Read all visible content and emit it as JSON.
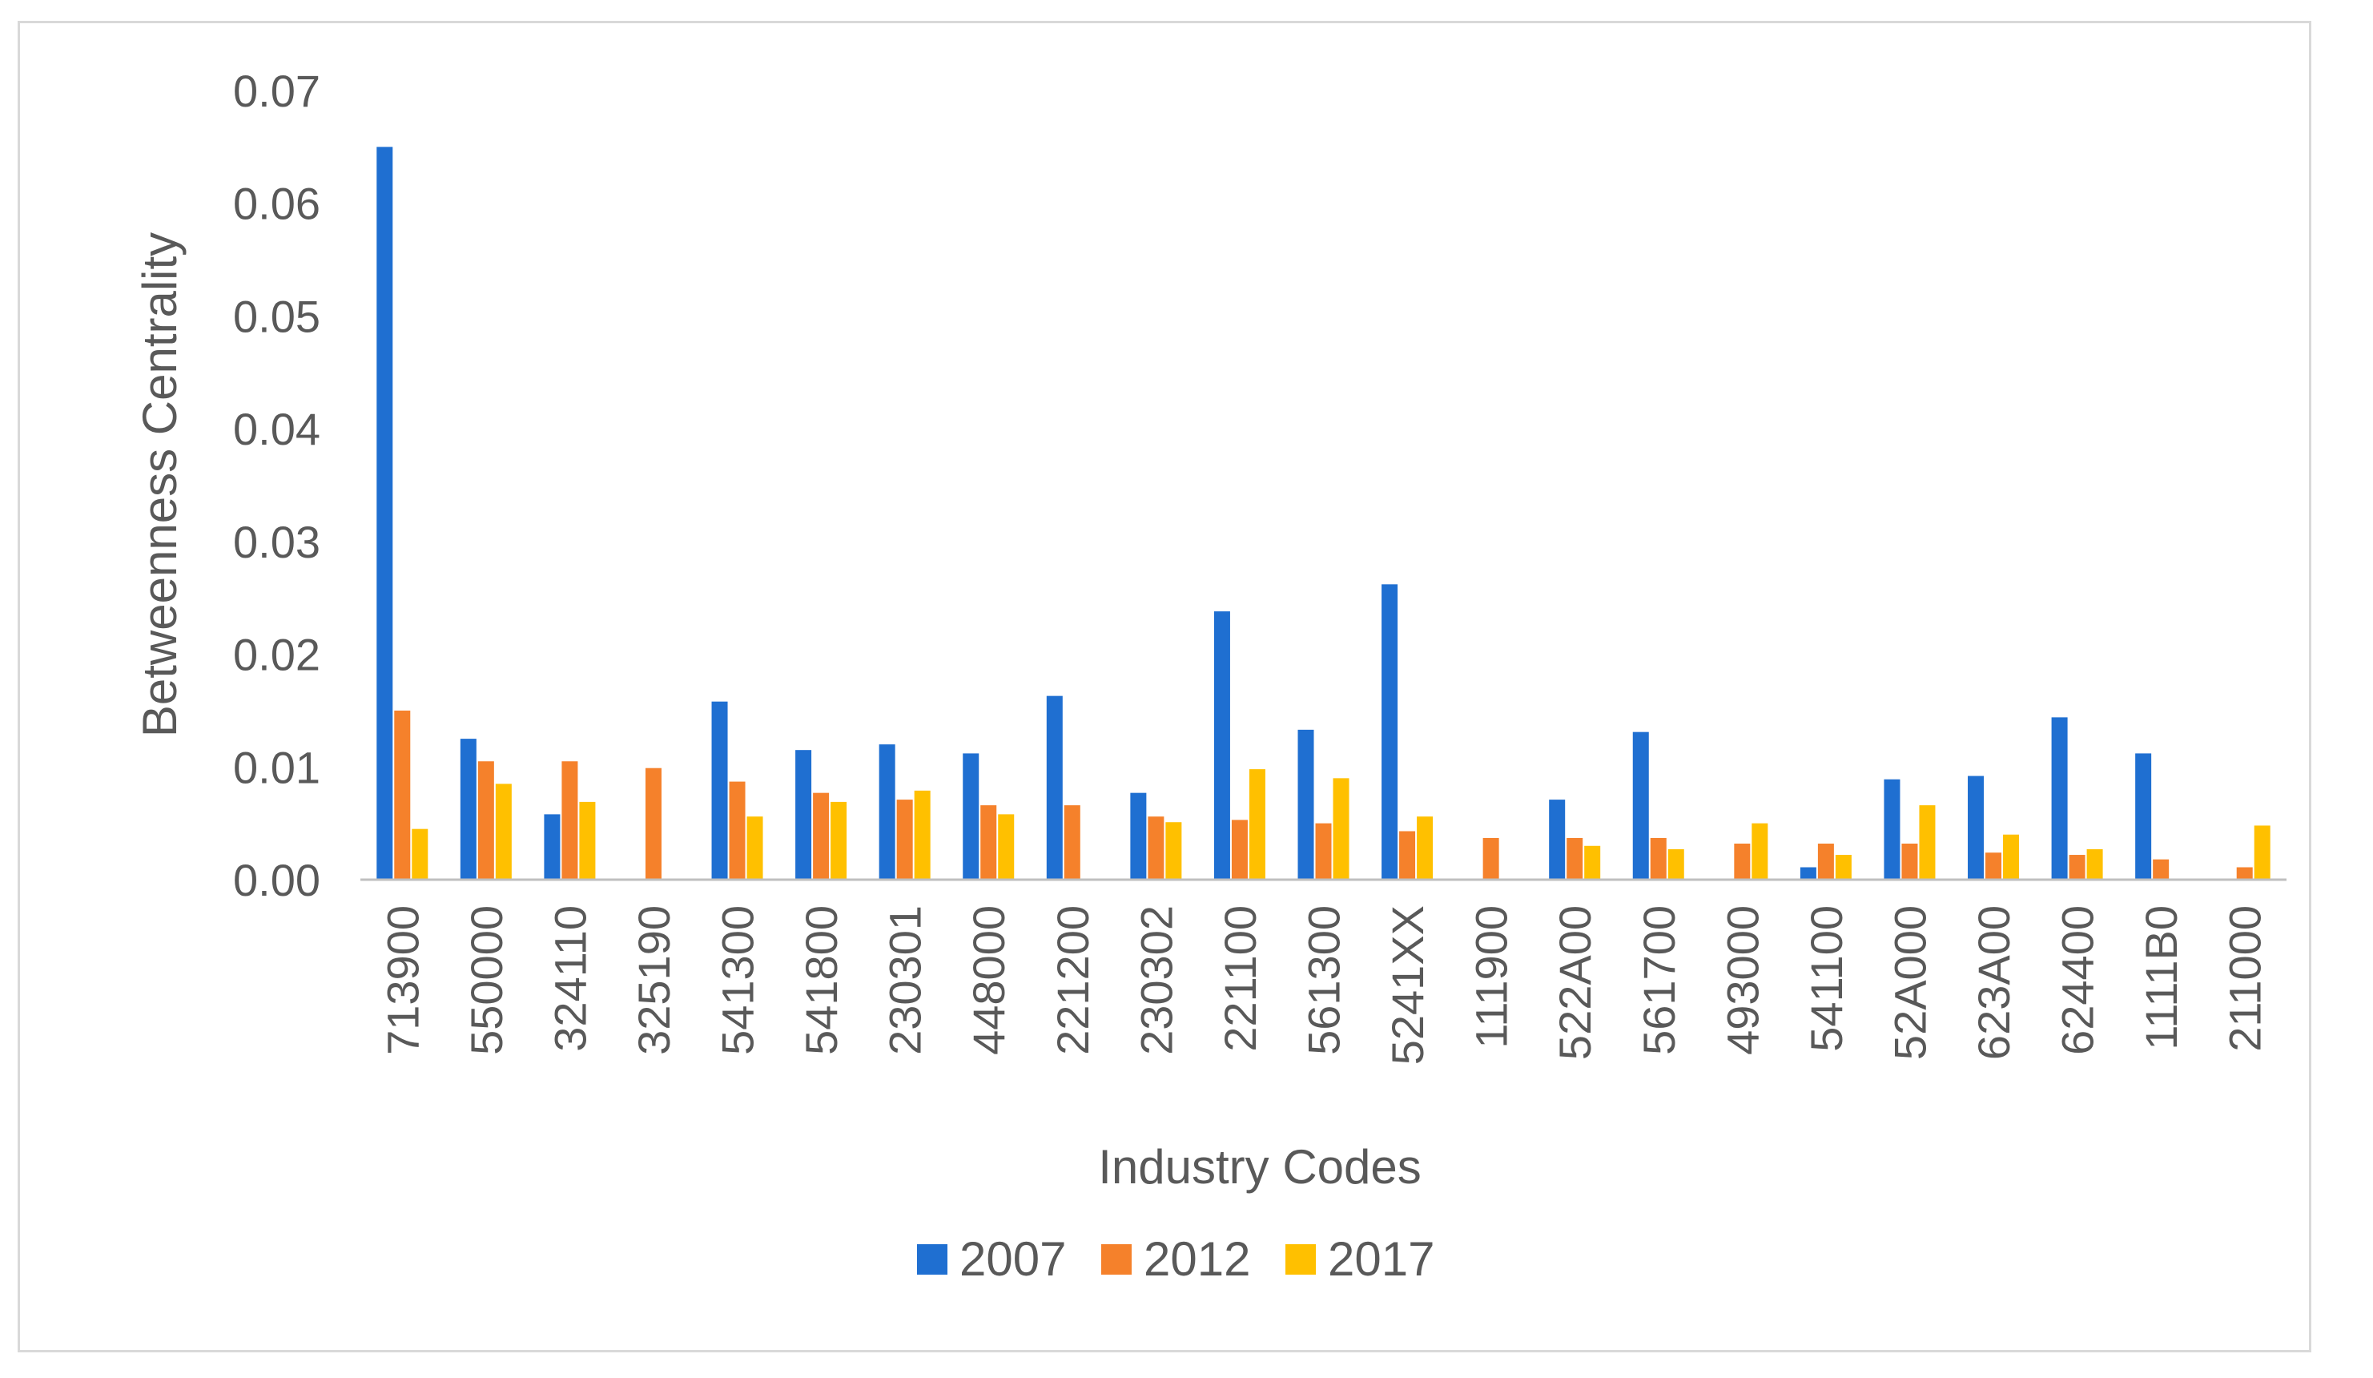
{
  "chart_data": {
    "type": "bar",
    "xlabel": "Industry Codes",
    "ylabel": "Betweenness Centrality",
    "ylim": [
      0,
      0.07
    ],
    "yticks": [
      "0.00",
      "0.01",
      "0.02",
      "0.03",
      "0.04",
      "0.05",
      "0.06",
      "0.07"
    ],
    "grid": false,
    "legend_position": "bottom",
    "categories": [
      "713900",
      "550000",
      "324110",
      "325190",
      "541300",
      "541800",
      "230301",
      "448000",
      "221200",
      "230302",
      "221100",
      "561300",
      "5241XX",
      "111900",
      "522A00",
      "561700",
      "493000",
      "541100",
      "52A000",
      "623A00",
      "624400",
      "1111B0",
      "211000"
    ],
    "series": [
      {
        "name": "2007",
        "color": "#1f6fd1",
        "values": [
          0.065,
          0.0125,
          0.0058,
          0,
          0.0158,
          0.0115,
          0.012,
          0.0112,
          0.0163,
          0.0077,
          0.0238,
          0.0133,
          0.0262,
          0,
          0.0071,
          0.0131,
          0,
          0.0011,
          0.0089,
          0.0092,
          0.0144,
          0.0112,
          0
        ]
      },
      {
        "name": "2012",
        "color": "#f5812b",
        "values": [
          0.015,
          0.0105,
          0.0105,
          0.0099,
          0.0087,
          0.0077,
          0.0071,
          0.0066,
          0.0066,
          0.0056,
          0.0053,
          0.005,
          0.0043,
          0.0037,
          0.0037,
          0.0037,
          0.0032,
          0.0032,
          0.0032,
          0.0024,
          0.0022,
          0.0018,
          0.0011
        ]
      },
      {
        "name": "2017",
        "color": "#ffc000",
        "values": [
          0.0045,
          0.0085,
          0.0069,
          0,
          0.0056,
          0.0069,
          0.0079,
          0.0058,
          0,
          0.0051,
          0.0098,
          0.009,
          0.0056,
          0,
          0.003,
          0.0027,
          0.005,
          0.0022,
          0.0066,
          0.004,
          0.0027,
          0,
          0.0048
        ]
      }
    ]
  }
}
